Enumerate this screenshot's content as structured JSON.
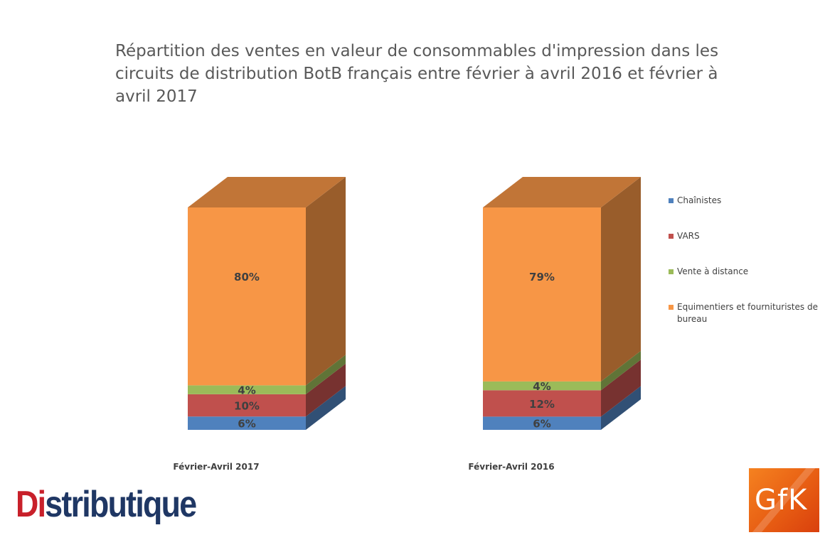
{
  "chart_data": {
    "type": "bar",
    "stacked": true,
    "percent_stacked": true,
    "style": "3d-column",
    "title": "Répartition des ventes en valeur de consommables d'impression dans les circuits de distribution BotB français entre février à avril 2016 et février à avril 2017",
    "categories": [
      "Février-Avril 2017",
      "Février-Avril 2016"
    ],
    "series": [
      {
        "name": "Chaînistes",
        "values": [
          6,
          6
        ],
        "labels": [
          "6%",
          "6%"
        ],
        "color": "#4f81bd"
      },
      {
        "name": "VARS",
        "values": [
          10,
          12
        ],
        "labels": [
          "10%",
          "12%"
        ],
        "color": "#c0504d"
      },
      {
        "name": "Vente à distance",
        "values": [
          4,
          4
        ],
        "labels": [
          "4%",
          "4%"
        ],
        "color": "#9bbb59"
      },
      {
        "name": "Equimentiers et fournituristes de bureau",
        "values": [
          80,
          79
        ],
        "labels": [
          "80%",
          "79%"
        ],
        "color": "#f79646"
      }
    ],
    "ylim": [
      0,
      100
    ],
    "legend": "right",
    "grid": false
  },
  "logos": {
    "distributique": {
      "prefix": "Di",
      "rest": "stributique"
    },
    "gfk": "GfK"
  }
}
